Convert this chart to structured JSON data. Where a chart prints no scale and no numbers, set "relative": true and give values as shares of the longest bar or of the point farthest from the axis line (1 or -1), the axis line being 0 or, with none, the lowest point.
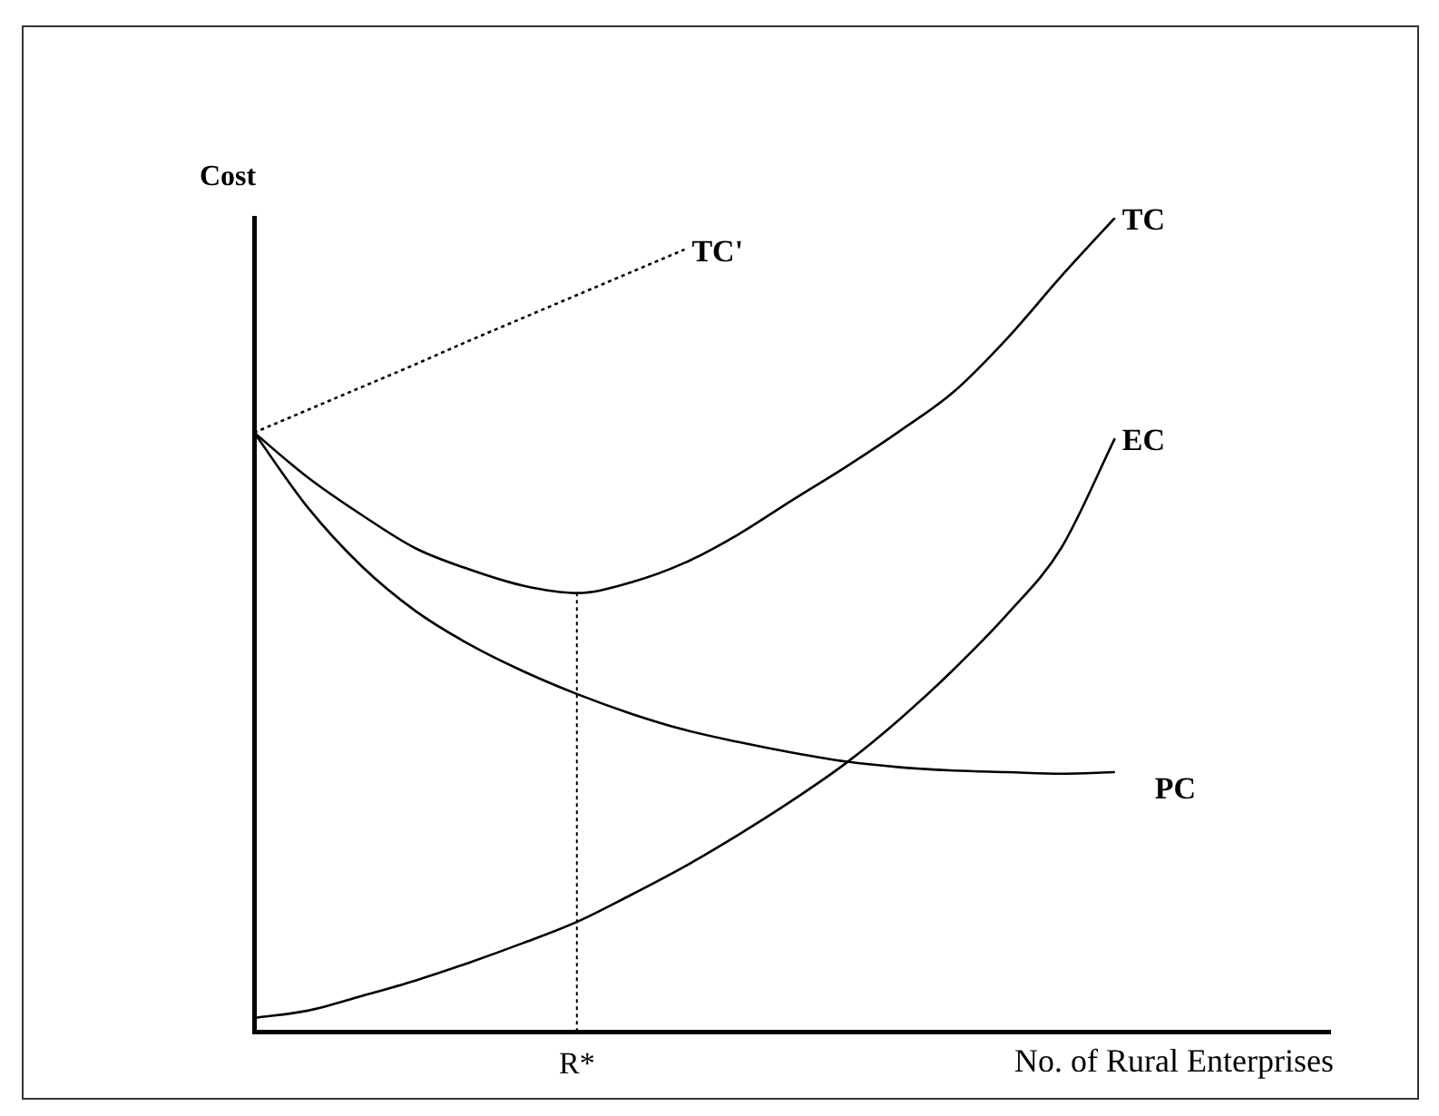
{
  "chart_data": {
    "type": "line",
    "relative": true,
    "ylabel": "Cost",
    "xlabel": "No. of Rural Enterprises",
    "legend": false,
    "grid": false,
    "marker": "none",
    "categories": [
      null,
      null,
      null,
      null,
      null,
      null,
      null,
      null,
      null,
      null,
      null,
      null,
      null,
      null,
      null,
      null,
      null,
      null,
      null,
      null,
      null
    ],
    "annotations": [
      "R*"
    ],
    "series": [
      {
        "name": "TC'",
        "color": "#000000",
        "line_style": "dotted",
        "values": [
          0.736,
          0.764,
          0.792,
          0.82,
          0.849,
          0.877,
          0.905,
          0.933,
          0.961,
          null,
          null,
          null,
          null,
          null,
          null,
          null,
          null,
          null,
          null,
          null,
          null
        ]
      },
      {
        "name": "TC",
        "color": "#000000",
        "values": [
          0.736,
          0.681,
          0.635,
          0.594,
          0.568,
          0.548,
          0.539,
          0.552,
          0.576,
          0.611,
          0.653,
          0.694,
          0.738,
          0.786,
          0.852,
          0.928,
          1.0,
          null,
          null,
          null,
          null
        ]
      },
      {
        "name": "EC",
        "color": "#000000",
        "values": [
          0.017,
          0.026,
          0.044,
          0.063,
          0.085,
          0.109,
          0.135,
          0.168,
          0.203,
          0.242,
          0.284,
          0.33,
          0.384,
          0.445,
          0.513,
          0.594,
          0.729,
          null,
          null,
          null,
          null
        ]
      },
      {
        "name": "PC",
        "color": "#000000",
        "values": [
          0.736,
          0.644,
          0.572,
          0.517,
          0.476,
          0.443,
          0.415,
          0.391,
          0.371,
          0.356,
          0.343,
          0.332,
          0.325,
          0.321,
          0.319,
          0.317,
          0.319,
          null,
          null,
          null,
          null
        ]
      }
    ]
  }
}
